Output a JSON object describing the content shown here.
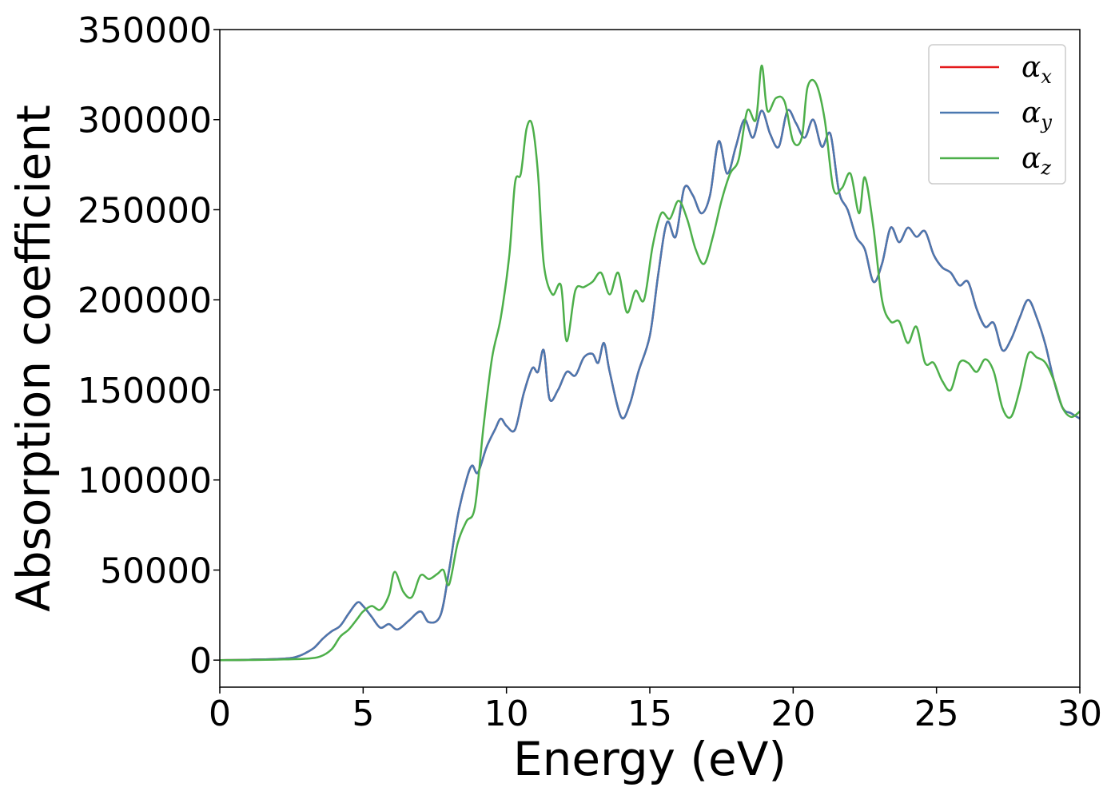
{
  "chart_data": {
    "type": "line",
    "title": "",
    "xlabel": "Energy (eV)",
    "ylabel": "Absorption coefficient",
    "xlim": [
      0,
      30
    ],
    "ylim": [
      -15000,
      350000
    ],
    "xticks": [
      0,
      5,
      10,
      15,
      20,
      25,
      30
    ],
    "xtick_labels": [
      "0",
      "5",
      "10",
      "15",
      "20",
      "25",
      "30"
    ],
    "yticks": [
      0,
      50000,
      100000,
      150000,
      200000,
      250000,
      300000,
      350000
    ],
    "ytick_labels": [
      "0",
      "50000",
      "100000",
      "150000",
      "200000",
      "250000",
      "300000",
      "350000"
    ],
    "grid": false,
    "legend_position": "top-right",
    "legend": [
      {
        "symbol": "α",
        "sub": "x",
        "color": "#e41a1c"
      },
      {
        "symbol": "α",
        "sub": "y",
        "color": "#4a78b0"
      },
      {
        "symbol": "α",
        "sub": "z",
        "color": "#4daf4a"
      }
    ],
    "series": [
      {
        "key": "alpha_x",
        "color": "#e41a1c",
        "x": [
          0,
          1,
          2,
          2.5,
          2.8,
          3.0,
          3.3,
          3.6,
          3.9,
          4.2,
          4.5,
          4.8,
          5.0,
          5.3,
          5.6,
          5.9,
          6.2,
          6.6,
          7.0,
          7.3,
          7.7,
          8.0,
          8.3,
          8.6,
          8.8,
          9.0,
          9.3,
          9.6,
          9.8,
          10.0,
          10.3,
          10.6,
          10.9,
          11.1,
          11.3,
          11.5,
          11.8,
          12.1,
          12.4,
          12.7,
          13.0,
          13.2,
          13.4,
          13.6,
          14.0,
          14.3,
          14.6,
          15.0,
          15.3,
          15.6,
          15.9,
          16.2,
          16.5,
          16.8,
          17.1,
          17.4,
          17.7,
          18.0,
          18.3,
          18.6,
          18.9,
          19.2,
          19.5,
          19.8,
          20.1,
          20.4,
          20.7,
          21.0,
          21.3,
          21.6,
          21.9,
          22.2,
          22.5,
          22.8,
          23.1,
          23.4,
          23.7,
          24.0,
          24.3,
          24.6,
          24.9,
          25.2,
          25.5,
          25.8,
          26.1,
          26.4,
          26.7,
          27.0,
          27.3,
          27.6,
          27.9,
          28.2,
          28.5,
          28.8,
          29.1,
          29.4,
          29.7,
          30.0
        ],
        "y": [
          0,
          200,
          600,
          1200,
          2500,
          4000,
          7000,
          12000,
          16000,
          19000,
          26000,
          32000,
          30000,
          24000,
          18000,
          20000,
          17000,
          22000,
          27000,
          21000,
          25000,
          50000,
          80000,
          100000,
          108000,
          104000,
          118000,
          128000,
          134000,
          130000,
          128000,
          148000,
          162000,
          160000,
          172000,
          145000,
          150000,
          160000,
          158000,
          168000,
          170000,
          165000,
          176000,
          160000,
          135000,
          142000,
          160000,
          180000,
          215000,
          243000,
          235000,
          262000,
          258000,
          248000,
          258000,
          288000,
          270000,
          285000,
          300000,
          290000,
          305000,
          292000,
          285000,
          305000,
          298000,
          290000,
          300000,
          285000,
          292000,
          260000,
          250000,
          235000,
          228000,
          210000,
          220000,
          240000,
          232000,
          240000,
          235000,
          238000,
          225000,
          218000,
          215000,
          208000,
          210000,
          195000,
          185000,
          187000,
          172000,
          178000,
          190000,
          200000,
          190000,
          175000,
          155000,
          140000,
          137000,
          134000
        ]
      },
      {
        "key": "alpha_y",
        "color": "#4a78b0",
        "x": [
          0,
          1,
          2,
          2.5,
          2.8,
          3.0,
          3.3,
          3.6,
          3.9,
          4.2,
          4.5,
          4.8,
          5.0,
          5.3,
          5.6,
          5.9,
          6.2,
          6.6,
          7.0,
          7.3,
          7.7,
          8.0,
          8.3,
          8.6,
          8.8,
          9.0,
          9.3,
          9.6,
          9.8,
          10.0,
          10.3,
          10.6,
          10.9,
          11.1,
          11.3,
          11.5,
          11.8,
          12.1,
          12.4,
          12.7,
          13.0,
          13.2,
          13.4,
          13.6,
          14.0,
          14.3,
          14.6,
          15.0,
          15.3,
          15.6,
          15.9,
          16.2,
          16.5,
          16.8,
          17.1,
          17.4,
          17.7,
          18.0,
          18.3,
          18.6,
          18.9,
          19.2,
          19.5,
          19.8,
          20.1,
          20.4,
          20.7,
          21.0,
          21.3,
          21.6,
          21.9,
          22.2,
          22.5,
          22.8,
          23.1,
          23.4,
          23.7,
          24.0,
          24.3,
          24.6,
          24.9,
          25.2,
          25.5,
          25.8,
          26.1,
          26.4,
          26.7,
          27.0,
          27.3,
          27.6,
          27.9,
          28.2,
          28.5,
          28.8,
          29.1,
          29.4,
          29.7,
          30.0
        ],
        "y": [
          0,
          200,
          600,
          1200,
          2500,
          4000,
          7000,
          12000,
          16000,
          19000,
          26000,
          32000,
          30000,
          24000,
          18000,
          20000,
          17000,
          22000,
          27000,
          21000,
          25000,
          50000,
          80000,
          100000,
          108000,
          104000,
          118000,
          128000,
          134000,
          130000,
          128000,
          148000,
          162000,
          160000,
          172000,
          145000,
          150000,
          160000,
          158000,
          168000,
          170000,
          165000,
          176000,
          160000,
          135000,
          142000,
          160000,
          180000,
          215000,
          243000,
          235000,
          262000,
          258000,
          248000,
          258000,
          288000,
          270000,
          285000,
          300000,
          290000,
          305000,
          292000,
          285000,
          305000,
          298000,
          290000,
          300000,
          285000,
          292000,
          260000,
          250000,
          235000,
          228000,
          210000,
          220000,
          240000,
          232000,
          240000,
          235000,
          238000,
          225000,
          218000,
          215000,
          208000,
          210000,
          195000,
          185000,
          187000,
          172000,
          178000,
          190000,
          200000,
          190000,
          175000,
          155000,
          140000,
          137000,
          134000
        ]
      },
      {
        "key": "alpha_z",
        "color": "#4daf4a",
        "x": [
          0,
          1,
          2,
          3.0,
          3.5,
          3.9,
          4.2,
          4.5,
          4.8,
          5.0,
          5.3,
          5.6,
          5.9,
          6.1,
          6.4,
          6.7,
          7.0,
          7.3,
          7.6,
          7.8,
          8.0,
          8.3,
          8.6,
          8.9,
          9.2,
          9.5,
          9.8,
          10.1,
          10.3,
          10.5,
          10.7,
          10.9,
          11.1,
          11.3,
          11.6,
          11.9,
          12.1,
          12.4,
          12.7,
          13.0,
          13.3,
          13.6,
          13.9,
          14.2,
          14.5,
          14.8,
          15.1,
          15.4,
          15.7,
          16.0,
          16.3,
          16.6,
          16.9,
          17.2,
          17.5,
          17.8,
          18.1,
          18.4,
          18.7,
          18.9,
          19.1,
          19.4,
          19.7,
          20.0,
          20.3,
          20.5,
          20.8,
          21.1,
          21.4,
          21.7,
          22.0,
          22.3,
          22.5,
          22.8,
          23.1,
          23.4,
          23.7,
          24.0,
          24.3,
          24.6,
          24.9,
          25.2,
          25.5,
          25.8,
          26.1,
          26.4,
          26.7,
          27.0,
          27.3,
          27.6,
          27.9,
          28.2,
          28.5,
          28.8,
          29.1,
          29.4,
          29.7,
          30.0
        ],
        "y": [
          0,
          100,
          300,
          800,
          2000,
          6000,
          13000,
          17000,
          23000,
          27000,
          30000,
          28000,
          36000,
          49000,
          38000,
          35000,
          47000,
          45000,
          48000,
          50000,
          42000,
          65000,
          77000,
          85000,
          130000,
          168000,
          190000,
          225000,
          265000,
          270000,
          295000,
          297000,
          270000,
          220000,
          203000,
          208000,
          177000,
          205000,
          207000,
          210000,
          215000,
          203000,
          215000,
          193000,
          205000,
          200000,
          230000,
          248000,
          245000,
          255000,
          245000,
          228000,
          220000,
          235000,
          255000,
          270000,
          278000,
          305000,
          300000,
          330000,
          305000,
          312000,
          310000,
          288000,
          290000,
          318000,
          320000,
          300000,
          262000,
          262000,
          270000,
          248000,
          268000,
          240000,
          200000,
          188000,
          188000,
          176000,
          185000,
          165000,
          165000,
          155000,
          150000,
          165000,
          165000,
          160000,
          167000,
          160000,
          140000,
          135000,
          150000,
          170000,
          168000,
          165000,
          155000,
          140000,
          135000,
          138000
        ]
      }
    ]
  }
}
